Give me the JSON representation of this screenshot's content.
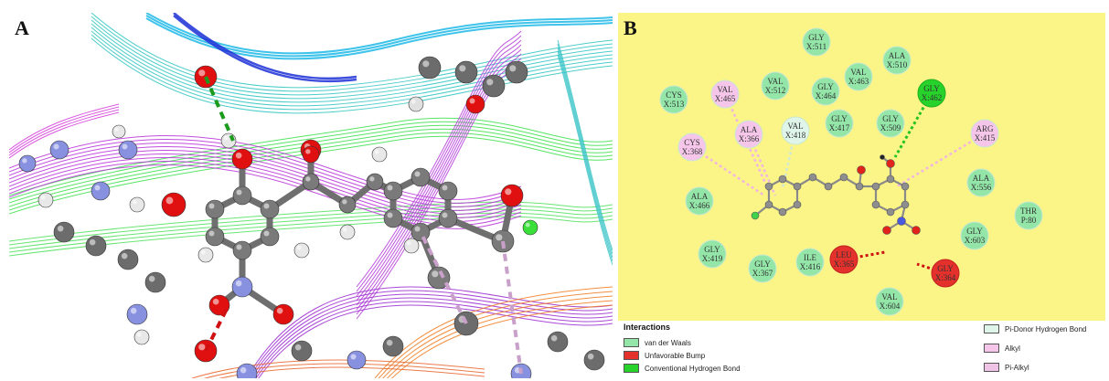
{
  "panel_a": {
    "label": "A"
  },
  "panel_b": {
    "label": "B"
  },
  "colors": {
    "van_der_waals": "#93e6a8",
    "unfavorable_bump": "#e4312b",
    "conventional_hb": "#27d32a",
    "pi_donor_hb": "#dff5ea",
    "alkyl": "#f5c6ea",
    "pi_alkyl": "#efc3e6",
    "panel_b_background": "#fbf587"
  },
  "residues": [
    {
      "name": "GLY",
      "num": "X:511",
      "type": "van_der_waals"
    },
    {
      "name": "ALA",
      "num": "X:510",
      "type": "van_der_waals"
    },
    {
      "name": "VAL",
      "num": "X:463",
      "type": "van_der_waals"
    },
    {
      "name": "GLY",
      "num": "X:462",
      "type": "conventional_hb"
    },
    {
      "name": "VAL",
      "num": "X:465",
      "type": "alkyl"
    },
    {
      "name": "VAL",
      "num": "X:512",
      "type": "van_der_waals"
    },
    {
      "name": "GLY",
      "num": "X:464",
      "type": "van_der_waals"
    },
    {
      "name": "CYS",
      "num": "X:513",
      "type": "van_der_waals"
    },
    {
      "name": "VAL",
      "num": "X:418",
      "type": "pi_donor_hb"
    },
    {
      "name": "GLY",
      "num": "X:509",
      "type": "van_der_waals"
    },
    {
      "name": "ALA",
      "num": "X:366",
      "type": "alkyl"
    },
    {
      "name": "GLY",
      "num": "X:417",
      "type": "van_der_waals"
    },
    {
      "name": "ARG",
      "num": "X:415",
      "type": "alkyl"
    },
    {
      "name": "CYS",
      "num": "X:368",
      "type": "alkyl"
    },
    {
      "name": "ALA",
      "num": "X:556",
      "type": "van_der_waals"
    },
    {
      "name": "ALA",
      "num": "X:466",
      "type": "van_der_waals"
    },
    {
      "name": "THR",
      "num": "P:80",
      "type": "van_der_waals"
    },
    {
      "name": "GLY",
      "num": "X:603",
      "type": "van_der_waals"
    },
    {
      "name": "GLY",
      "num": "X:419",
      "type": "van_der_waals"
    },
    {
      "name": "LEU",
      "num": "X:365",
      "type": "unfavorable_bump"
    },
    {
      "name": "ILE",
      "num": "X:416",
      "type": "van_der_waals"
    },
    {
      "name": "GLY",
      "num": "X:367",
      "type": "van_der_waals"
    },
    {
      "name": "GLY",
      "num": "X:364",
      "type": "unfavorable_bump"
    },
    {
      "name": "VAL",
      "num": "X:604",
      "type": "van_der_waals"
    }
  ],
  "legend": {
    "title": "Interactions",
    "items": [
      {
        "label": "van der Waals",
        "type": "van_der_waals"
      },
      {
        "label": "Unfavorable Bump",
        "type": "unfavorable_bump"
      },
      {
        "label": "Conventional Hydrogen Bond",
        "type": "conventional_hb"
      },
      {
        "label": "Pi-Donor Hydrogen Bond",
        "type": "pi_donor_hb"
      },
      {
        "label": "Alkyl",
        "type": "alkyl"
      },
      {
        "label": "Pi-Alkyl",
        "type": "pi_alkyl"
      }
    ]
  }
}
